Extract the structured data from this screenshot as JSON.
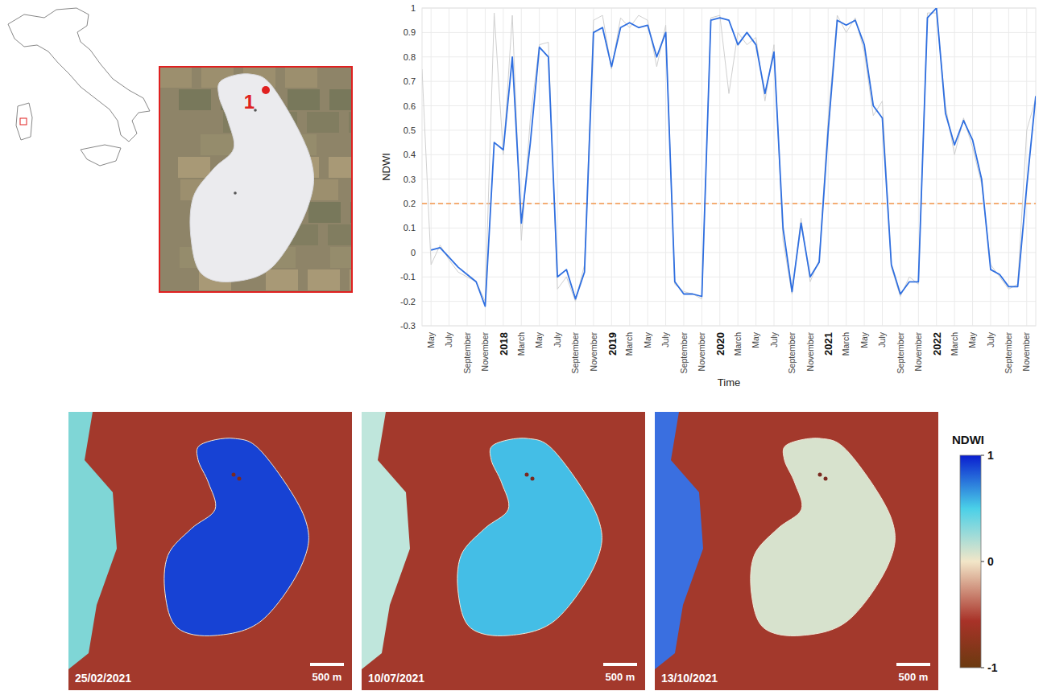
{
  "chart_data": {
    "type": "line",
    "x_label": "Time",
    "y_label": "NDWI",
    "x": [
      "2017-04",
      "2017-05",
      "2017-06",
      "2017-07",
      "2017-08",
      "2017-09",
      "2017-10",
      "2017-11",
      "2017-12",
      "2018-01",
      "2018-02",
      "2018-03",
      "2018-04",
      "2018-05",
      "2018-06",
      "2018-07",
      "2018-08",
      "2018-09",
      "2018-10",
      "2018-11",
      "2018-12",
      "2019-01",
      "2019-02",
      "2019-03",
      "2019-04",
      "2019-05",
      "2019-06",
      "2019-07",
      "2019-08",
      "2019-09",
      "2019-10",
      "2019-11",
      "2019-12",
      "2020-01",
      "2020-02",
      "2020-03",
      "2020-04",
      "2020-05",
      "2020-06",
      "2020-07",
      "2020-08",
      "2020-09",
      "2020-10",
      "2020-11",
      "2020-12",
      "2021-01",
      "2021-02",
      "2021-03",
      "2021-04",
      "2021-05",
      "2021-06",
      "2021-07",
      "2021-08",
      "2021-09",
      "2021-10",
      "2021-11",
      "2021-12",
      "2022-01",
      "2022-02",
      "2022-03",
      "2022-04",
      "2022-05",
      "2022-06",
      "2022-07",
      "2022-08",
      "2022-09",
      "2022-10",
      "2022-11",
      "2022-12"
    ],
    "series": [
      {
        "color": "#d0d0d0",
        "values": [
          0.75,
          -0.05,
          0.03,
          -0.03,
          -0.08,
          -0.1,
          -0.12,
          -0.2,
          0.98,
          0.4,
          0.97,
          0.05,
          0.55,
          0.85,
          0.86,
          -0.15,
          -0.1,
          -0.2,
          -0.05,
          0.95,
          0.97,
          0.75,
          0.96,
          0.92,
          0.97,
          0.95,
          0.76,
          0.93,
          -0.13,
          -0.16,
          -0.17,
          -0.19,
          0.96,
          0.97,
          0.65,
          0.9,
          0.85,
          0.88,
          0.62,
          0.85,
          0.05,
          -0.17,
          0.14,
          -0.12,
          -0.03,
          0.55,
          0.97,
          0.9,
          0.96,
          0.82,
          0.56,
          0.62,
          -0.06,
          -0.18,
          -0.1,
          -0.13,
          0.98,
          0.98,
          0.6,
          0.4,
          0.55,
          0.43,
          0.28,
          -0.05,
          -0.1,
          -0.15,
          -0.13,
          0.5,
          0.63
        ]
      },
      {
        "color": "#2f6fe0",
        "values": [
          null,
          0.01,
          0.02,
          -0.02,
          -0.06,
          -0.09,
          -0.12,
          -0.22,
          0.45,
          0.42,
          0.8,
          0.12,
          0.45,
          0.84,
          0.8,
          -0.1,
          -0.07,
          -0.19,
          -0.08,
          0.9,
          0.92,
          0.76,
          0.92,
          0.94,
          0.92,
          0.93,
          0.8,
          0.9,
          -0.12,
          -0.17,
          -0.17,
          -0.18,
          0.95,
          0.96,
          0.95,
          0.85,
          0.9,
          0.85,
          0.65,
          0.82,
          0.1,
          -0.16,
          0.12,
          -0.1,
          -0.04,
          0.5,
          0.95,
          0.93,
          0.95,
          0.85,
          0.6,
          0.55,
          -0.05,
          -0.17,
          -0.12,
          -0.12,
          0.96,
          1.0,
          0.57,
          0.44,
          0.54,
          0.46,
          0.3,
          -0.07,
          -0.09,
          -0.14,
          -0.14,
          0.27,
          0.64
        ]
      }
    ],
    "xlim": [
      "2017-04",
      "2022-12"
    ],
    "xticks": [
      {
        "value": "2017-05",
        "label": "May"
      },
      {
        "value": "2017-07",
        "label": "July"
      },
      {
        "value": "2017-09",
        "label": "September"
      },
      {
        "value": "2017-11",
        "label": "November"
      },
      {
        "value": "2018-01",
        "label": "2018"
      },
      {
        "value": "2018-03",
        "label": "March"
      },
      {
        "value": "2018-05",
        "label": "May"
      },
      {
        "value": "2018-07",
        "label": "July"
      },
      {
        "value": "2018-09",
        "label": "September"
      },
      {
        "value": "2018-11",
        "label": "November"
      },
      {
        "value": "2019-01",
        "label": "2019"
      },
      {
        "value": "2019-03",
        "label": "March"
      },
      {
        "value": "2019-05",
        "label": "May"
      },
      {
        "value": "2019-07",
        "label": "July"
      },
      {
        "value": "2019-09",
        "label": "September"
      },
      {
        "value": "2019-11",
        "label": "November"
      },
      {
        "value": "2020-01",
        "label": "2020"
      },
      {
        "value": "2020-03",
        "label": "March"
      },
      {
        "value": "2020-05",
        "label": "May"
      },
      {
        "value": "2020-07",
        "label": "July"
      },
      {
        "value": "2020-09",
        "label": "September"
      },
      {
        "value": "2020-11",
        "label": "November"
      },
      {
        "value": "2021-01",
        "label": "2021"
      },
      {
        "value": "2021-03",
        "label": "March"
      },
      {
        "value": "2021-05",
        "label": "May"
      },
      {
        "value": "2021-07",
        "label": "July"
      },
      {
        "value": "2021-09",
        "label": "September"
      },
      {
        "value": "2021-11",
        "label": "November"
      },
      {
        "value": "2022-01",
        "label": "2022"
      },
      {
        "value": "2022-03",
        "label": "March"
      },
      {
        "value": "2022-05",
        "label": "May"
      },
      {
        "value": "2022-07",
        "label": "July"
      },
      {
        "value": "2022-09",
        "label": "September"
      },
      {
        "value": "2022-11",
        "label": "November"
      }
    ],
    "ylim": [
      -0.3,
      1
    ],
    "yticks": [
      -0.3,
      -0.2,
      -0.1,
      0,
      0.1,
      0.2,
      0.3,
      0.4,
      0.5,
      0.6,
      0.7,
      0.8,
      0.9,
      1
    ],
    "grid": true,
    "reference_line": {
      "value": 0.2,
      "color": "#f4a261",
      "line_style": "dashed"
    }
  },
  "maps": {
    "location_label": "1",
    "scale_bar": "500 m",
    "panels": [
      {
        "date": "25/02/2021",
        "lake_ndwi": 0.9
      },
      {
        "date": "10/07/2021",
        "lake_ndwi": 0.55
      },
      {
        "date": "13/10/2021",
        "lake_ndwi": 0.08
      }
    ],
    "colorbar": {
      "title": "NDWI",
      "range": [
        -1,
        1
      ],
      "ticks": [
        -1,
        0,
        1
      ]
    }
  }
}
